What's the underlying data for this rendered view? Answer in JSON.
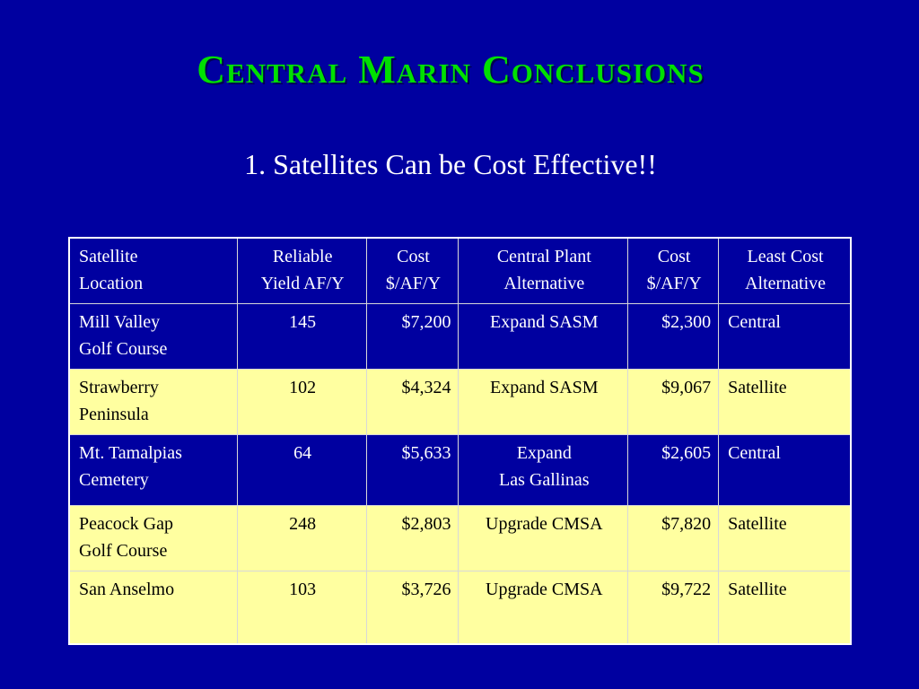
{
  "slide": {
    "title": "Central Marin Conclusions",
    "subtitle": "1. Satellites Can be Cost Effective!!"
  },
  "table": {
    "headers": [
      [
        "Satellite",
        "Location"
      ],
      [
        "Reliable",
        "Yield AF/Y"
      ],
      [
        "Cost",
        "$/AF/Y"
      ],
      [
        "Central Plant",
        "Alternative"
      ],
      [
        "Cost",
        "$/AF/Y"
      ],
      [
        "Least Cost",
        "Alternative"
      ]
    ],
    "rows": [
      {
        "location": [
          "Mill Valley",
          "Golf Course"
        ],
        "yield": "145",
        "cost": "$7,200",
        "central_alternative": [
          "Expand SASM"
        ],
        "central_cost": "$2,300",
        "least_cost": "Central"
      },
      {
        "location": [
          "Strawberry",
          "Peninsula"
        ],
        "yield": "102",
        "cost": "$4,324",
        "central_alternative": [
          "Expand SASM"
        ],
        "central_cost": "$9,067",
        "least_cost": "Satellite"
      },
      {
        "location": [
          "Mt. Tamalpias",
          "Cemetery"
        ],
        "yield": "64",
        "cost": "$5,633",
        "central_alternative": [
          "Expand",
          "Las Gallinas"
        ],
        "central_cost": "$2,605",
        "least_cost": "Central"
      },
      {
        "location": [
          "Peacock Gap",
          "Golf Course"
        ],
        "yield": "248",
        "cost": "$2,803",
        "central_alternative": [
          "Upgrade CMSA"
        ],
        "central_cost": "$7,820",
        "least_cost": "Satellite"
      },
      {
        "location": [
          "San Anselmo"
        ],
        "yield": "103",
        "cost": "$3,726",
        "central_alternative": [
          "Upgrade CMSA"
        ],
        "central_cost": "$9,722",
        "least_cost": "Satellite"
      }
    ]
  },
  "colors": {
    "background": "#0000a0",
    "title": "#00e000",
    "highlight_row": "#ffffa0"
  }
}
